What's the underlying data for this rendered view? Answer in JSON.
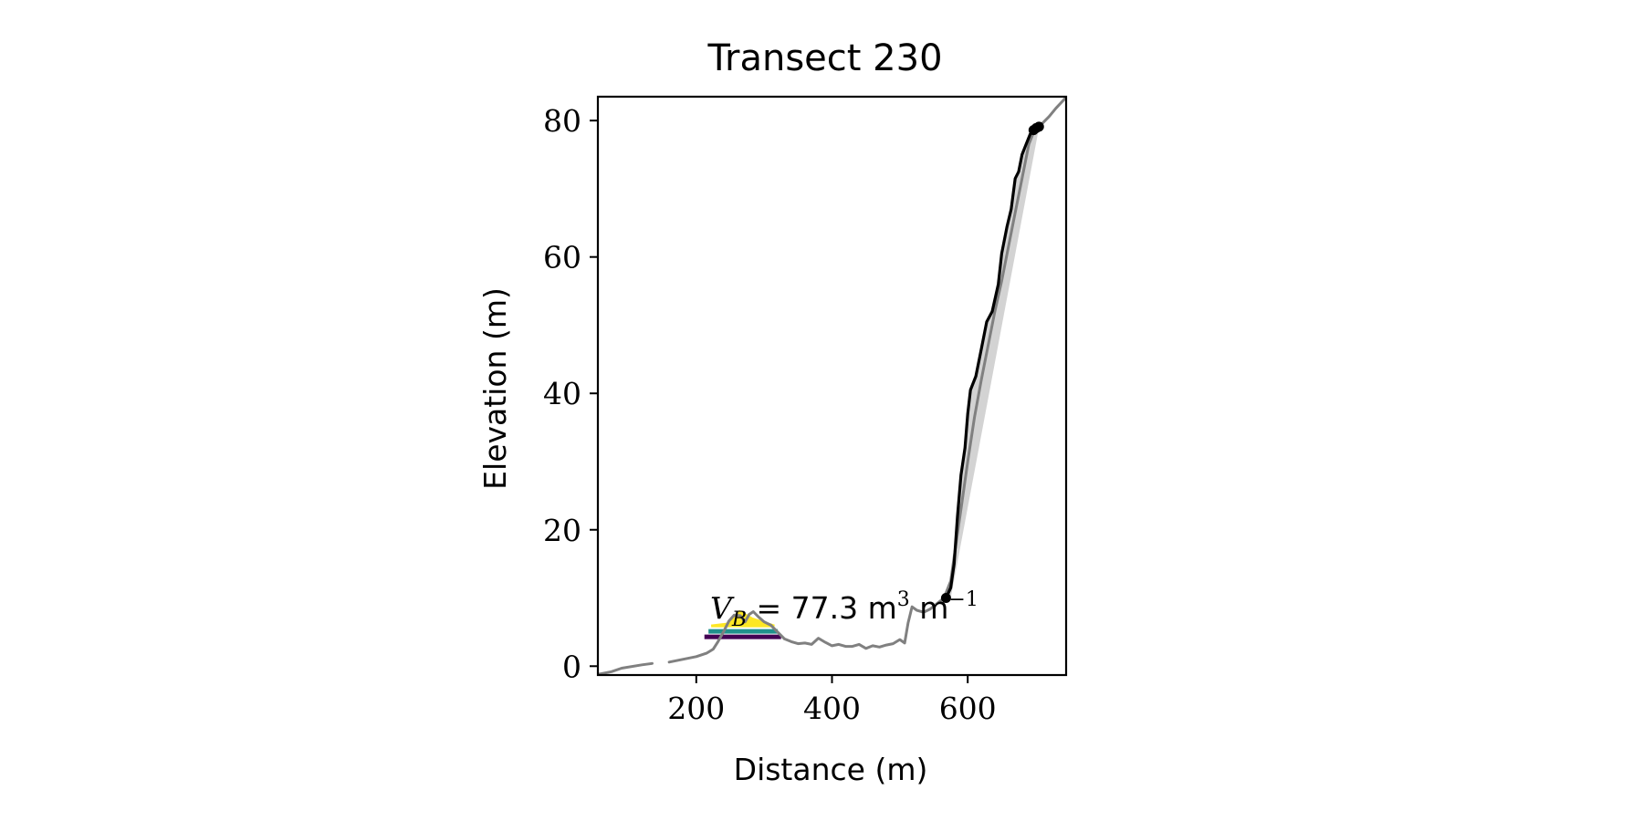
{
  "chart_data": {
    "type": "line",
    "title": "Transect 230",
    "xlabel": "Distance (m)",
    "ylabel": "Elevation (m)",
    "xlim": [
      55,
      745
    ],
    "ylim": [
      -1.3,
      83.5
    ],
    "xticks": [
      200,
      400,
      600
    ],
    "yticks": [
      0,
      20,
      40,
      60,
      80
    ],
    "grid": false,
    "annotation": {
      "symbol": "V",
      "subscript": "B",
      "relation": "=",
      "value": "77.3",
      "unit": "m",
      "unit_exp": "3",
      "unit2": "m",
      "unit2_exp": "−1"
    },
    "series": [
      {
        "role": "profile",
        "color": "#808080",
        "segments": [
          [
            [
              55,
              -1.2
            ],
            [
              75,
              -0.8
            ],
            [
              90,
              -0.3
            ],
            [
              120,
              0.2
            ],
            [
              135,
              0.4
            ]
          ],
          [
            [
              160,
              0.6
            ],
            [
              180,
              1.0
            ],
            [
              200,
              1.4
            ],
            [
              215,
              1.9
            ],
            [
              225,
              2.5
            ],
            [
              232,
              3.6
            ],
            [
              240,
              5.0
            ],
            [
              248,
              6.6
            ],
            [
              256,
              7.5
            ],
            [
              265,
              7.4
            ],
            [
              272,
              6.5
            ],
            [
              278,
              7.6
            ],
            [
              284,
              8.0
            ],
            [
              292,
              7.2
            ],
            [
              300,
              6.5
            ],
            [
              310,
              6.0
            ],
            [
              320,
              5.0
            ],
            [
              330,
              4.0
            ],
            [
              340,
              3.6
            ],
            [
              350,
              3.3
            ],
            [
              360,
              3.4
            ],
            [
              370,
              3.2
            ],
            [
              380,
              4.1
            ],
            [
              390,
              3.5
            ],
            [
              400,
              3.0
            ],
            [
              410,
              3.2
            ],
            [
              420,
              2.9
            ],
            [
              430,
              2.9
            ],
            [
              440,
              3.2
            ],
            [
              450,
              2.6
            ],
            [
              460,
              3.0
            ],
            [
              470,
              2.8
            ],
            [
              480,
              3.1
            ],
            [
              490,
              3.3
            ],
            [
              500,
              3.9
            ],
            [
              507,
              3.4
            ],
            [
              512,
              6.3
            ],
            [
              518,
              8.7
            ],
            [
              525,
              8.2
            ],
            [
              535,
              7.9
            ],
            [
              545,
              8.4
            ],
            [
              555,
              9.2
            ],
            [
              565,
              10.0
            ],
            [
              575,
              12.5
            ],
            [
              580,
              16.0
            ],
            [
              585,
              19.5
            ],
            [
              590,
              23.0
            ],
            [
              600,
              30.0
            ],
            [
              610,
              36.5
            ],
            [
              620,
              42.0
            ],
            [
              630,
              47.0
            ],
            [
              640,
              52.0
            ],
            [
              650,
              56.5
            ],
            [
              660,
              61.5
            ],
            [
              670,
              66.5
            ],
            [
              680,
              71.5
            ],
            [
              690,
              76.5
            ],
            [
              700,
              79.0
            ],
            [
              710,
              79.6
            ],
            [
              720,
              80.6
            ],
            [
              730,
              81.8
            ],
            [
              745,
              83.4
            ]
          ]
        ]
      },
      {
        "role": "cliff",
        "color": "#000000",
        "points": [
          [
            568,
            10.0
          ],
          [
            575,
            11.5
          ],
          [
            580,
            15.0
          ],
          [
            585,
            22.0
          ],
          [
            590,
            28.0
          ],
          [
            596,
            32.0
          ],
          [
            600,
            37.0
          ],
          [
            604,
            40.5
          ],
          [
            612,
            42.5
          ],
          [
            620,
            46.5
          ],
          [
            628,
            50.5
          ],
          [
            636,
            52.0
          ],
          [
            645,
            56.0
          ],
          [
            650,
            60.5
          ],
          [
            658,
            64.5
          ],
          [
            664,
            67.0
          ],
          [
            670,
            71.5
          ],
          [
            675,
            72.5
          ],
          [
            680,
            75.0
          ],
          [
            686,
            76.5
          ],
          [
            692,
            78.0
          ],
          [
            698,
            78.8
          ],
          [
            705,
            79.2
          ]
        ]
      }
    ],
    "fill_band": {
      "color": "#d3d3d3",
      "lower": [
        [
          575,
          10.0
        ],
        [
          705,
          79.0
        ]
      ]
    },
    "endpoints": [
      [
        568,
        10.0
      ],
      [
        697,
        78.6
      ],
      [
        701,
        78.9
      ],
      [
        705,
        79.1
      ]
    ],
    "dune_layers": [
      {
        "color": "#440154",
        "y": 4.3,
        "x0": 212,
        "x1": 325,
        "peak": 4.3
      },
      {
        "color": "#21918c",
        "y": 5.1,
        "x0": 218,
        "x1": 320,
        "peak": 5.1
      },
      {
        "color": "#fde725",
        "y": 5.9,
        "x0": 222,
        "x1": 315,
        "peak": 8.0
      }
    ]
  }
}
